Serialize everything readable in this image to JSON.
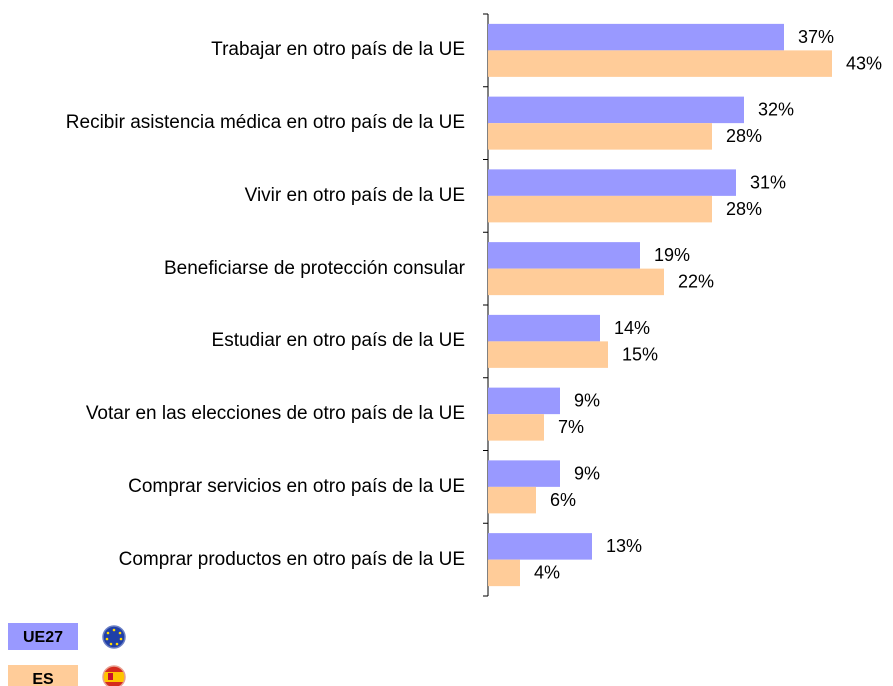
{
  "chart_data": {
    "type": "bar",
    "orientation": "horizontal",
    "categories": [
      "Trabajar en otro país de la UE",
      "Recibir asistencia médica en otro país de la UE",
      "Vivir en otro país de la UE",
      "Beneficiarse de protección consular",
      "Estudiar en otro país de la UE",
      "Votar en las elecciones de otro país de la UE",
      "Comprar servicios en otro país de la UE",
      "Comprar productos en otro país de la UE"
    ],
    "series": [
      {
        "name": "UE27",
        "color": "#9999ff",
        "values": [
          37,
          32,
          31,
          19,
          14,
          9,
          9,
          13
        ],
        "value_labels": [
          "37%",
          "32%",
          "31%",
          "19%",
          "14%",
          "9%",
          "9%",
          "13%"
        ]
      },
      {
        "name": "ES",
        "color": "#ffcc99",
        "values": [
          43,
          28,
          28,
          22,
          15,
          7,
          6,
          4
        ],
        "value_labels": [
          "43%",
          "28%",
          "28%",
          "22%",
          "15%",
          "7%",
          "6%",
          "4%"
        ]
      }
    ],
    "xlim": [
      0,
      50
    ]
  }
}
